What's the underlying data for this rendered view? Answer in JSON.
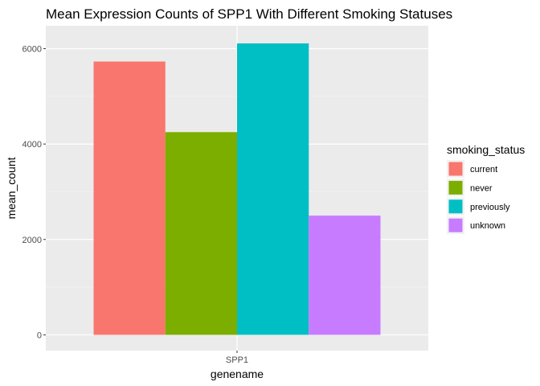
{
  "chart_data": {
    "type": "bar",
    "title": "Mean Expression Counts of SPP1 With Different Smoking Statuses",
    "xlabel": "genename",
    "ylabel": "mean_count",
    "categories": [
      "SPP1"
    ],
    "ylim": [
      -330,
      6480
    ],
    "yticks": [
      0,
      2000,
      4000,
      6000
    ],
    "yticklabels": [
      "0",
      "2000",
      "4000",
      "6000"
    ],
    "grid": true,
    "legend": {
      "title": "smoking_status",
      "position": "right"
    },
    "series": [
      {
        "name": "current",
        "values": [
          5730
        ],
        "color": "#F8766D"
      },
      {
        "name": "never",
        "values": [
          4250
        ],
        "color": "#7CAE00"
      },
      {
        "name": "previously",
        "values": [
          6110
        ],
        "color": "#00BFC4"
      },
      {
        "name": "unknown",
        "values": [
          2500
        ],
        "color": "#C77CFF"
      }
    ]
  },
  "colors": {
    "panel_background": "#EBEBEB",
    "grid_major": "#FFFFFF",
    "grid_minor": "#F5F5F5",
    "tick_color": "#333333"
  }
}
